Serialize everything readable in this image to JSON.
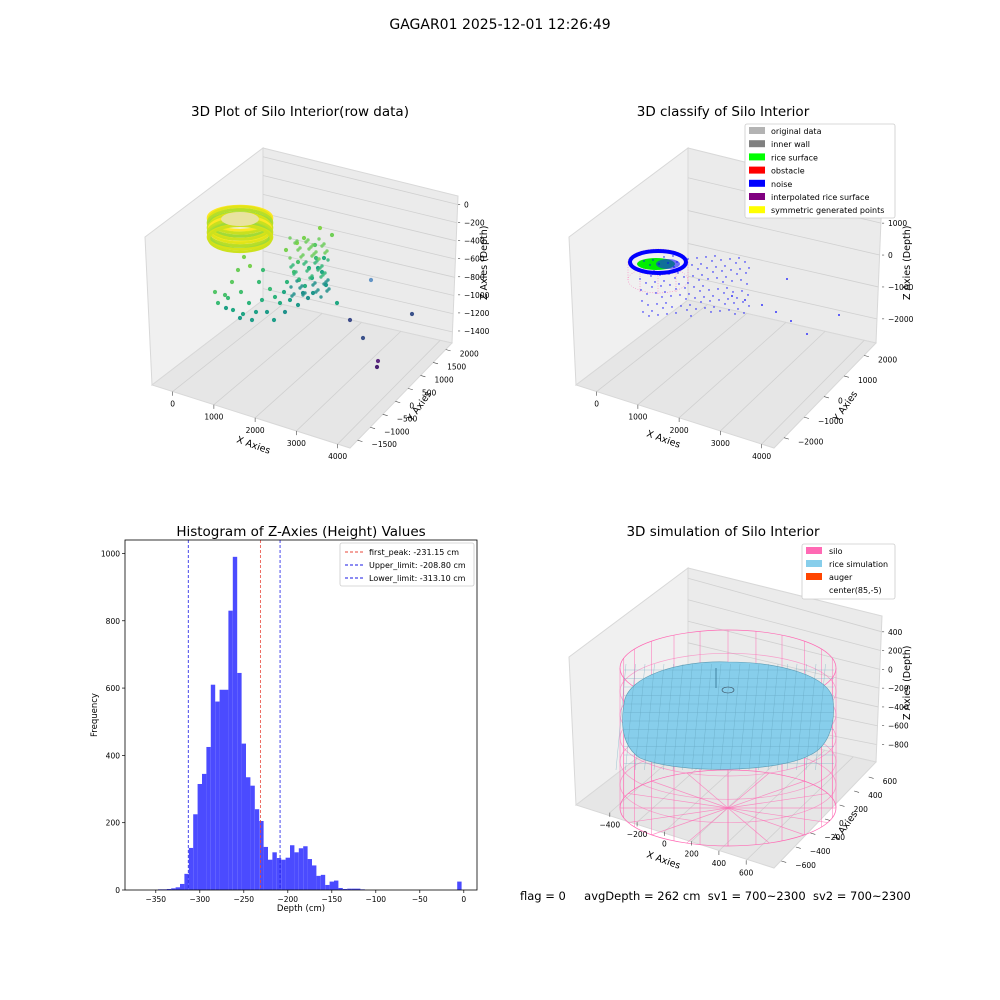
{
  "figure": {
    "title": "GAGAR01 2025-12-01 12:26:49",
    "status": {
      "flag": "flag = 0",
      "avg_depth": "avgDepth = 262 cm",
      "sv1": "sv1 = 700~2300",
      "sv2": "sv2 = 700~2300"
    }
  },
  "chart_data": [
    {
      "type": "scatter3d",
      "title": "3D Plot of Silo Interior(row data)",
      "xlabel": "X Axies",
      "ylabel": "Y Axies",
      "zlabel": "Z Axies (Depth)",
      "x_ticks": [
        0,
        1000,
        2000,
        3000,
        4000
      ],
      "y_ticks": [
        -1500,
        -1000,
        -500,
        0,
        500,
        1000,
        1500,
        2000
      ],
      "z_ticks": [
        0,
        -200,
        -400,
        -600,
        -800,
        -1000,
        -1200,
        -1400
      ],
      "colormap": "viridis",
      "clusters": [
        {
          "description": "dense ring",
          "approx_x": 600,
          "approx_y": 0,
          "approx_z": -200,
          "color": "#d4e620"
        },
        {
          "description": "scattered interior points",
          "approx_x": [
            500,
            2500
          ],
          "approx_z": [
            -300,
            -1100
          ],
          "color": "#35b779"
        },
        {
          "description": "far outliers",
          "approx_x": [
            3200,
            4200
          ],
          "approx_z": [
            -1300,
            -1500
          ],
          "color": "#472d7b"
        }
      ]
    },
    {
      "type": "scatter3d",
      "title": "3D classify of Silo Interior",
      "xlabel": "X Axies",
      "ylabel": "Y Axies",
      "zlabel": "Z Axies (Depth)",
      "x_ticks": [
        0,
        1000,
        2000,
        3000,
        4000
      ],
      "y_ticks": [
        -2000,
        -1000,
        0,
        1000,
        2000
      ],
      "z_ticks": [
        1000,
        0,
        -1000,
        -2000
      ],
      "legend": [
        {
          "label": "original data",
          "color": "#b3b3b3"
        },
        {
          "label": "inner wall",
          "color": "#808080"
        },
        {
          "label": "rice surface",
          "color": "#00ff00"
        },
        {
          "label": "obstacle",
          "color": "#ff0000"
        },
        {
          "label": "noise",
          "color": "#0000ff"
        },
        {
          "label": "interpolated rice surface",
          "color": "#800080"
        },
        {
          "label": "symmetric generated points",
          "color": "#ffff00"
        }
      ],
      "legend_position": "top-right"
    },
    {
      "type": "bar",
      "title": "Histogram of Z-Axies (Height) Values",
      "xlabel": "Depth (cm)",
      "ylabel": "Frequency",
      "xlim": [
        -385,
        15
      ],
      "ylim": [
        0,
        1040
      ],
      "x_ticks": [
        -350,
        -300,
        -250,
        -200,
        -150,
        -100,
        -50,
        0
      ],
      "y_ticks": [
        0,
        200,
        400,
        600,
        800,
        1000
      ],
      "bin_width": 5,
      "bins": [
        {
          "x": -345,
          "y": 2
        },
        {
          "x": -340,
          "y": 2
        },
        {
          "x": -335,
          "y": 3
        },
        {
          "x": -330,
          "y": 5
        },
        {
          "x": -325,
          "y": 8
        },
        {
          "x": -320,
          "y": 18
        },
        {
          "x": -315,
          "y": 48
        },
        {
          "x": -310,
          "y": 125
        },
        {
          "x": -305,
          "y": 225
        },
        {
          "x": -300,
          "y": 315
        },
        {
          "x": -295,
          "y": 345
        },
        {
          "x": -290,
          "y": 425
        },
        {
          "x": -285,
          "y": 610
        },
        {
          "x": -280,
          "y": 560
        },
        {
          "x": -275,
          "y": 595
        },
        {
          "x": -270,
          "y": 595
        },
        {
          "x": -265,
          "y": 830
        },
        {
          "x": -260,
          "y": 990
        },
        {
          "x": -255,
          "y": 645
        },
        {
          "x": -250,
          "y": 435
        },
        {
          "x": -245,
          "y": 335
        },
        {
          "x": -240,
          "y": 310
        },
        {
          "x": -235,
          "y": 240
        },
        {
          "x": -230,
          "y": 205
        },
        {
          "x": -225,
          "y": 128
        },
        {
          "x": -220,
          "y": 90
        },
        {
          "x": -215,
          "y": 112
        },
        {
          "x": -210,
          "y": 95
        },
        {
          "x": -205,
          "y": 90
        },
        {
          "x": -200,
          "y": 96
        },
        {
          "x": -195,
          "y": 133
        },
        {
          "x": -190,
          "y": 112
        },
        {
          "x": -185,
          "y": 124
        },
        {
          "x": -180,
          "y": 130
        },
        {
          "x": -175,
          "y": 92
        },
        {
          "x": -170,
          "y": 73
        },
        {
          "x": -165,
          "y": 42
        },
        {
          "x": -160,
          "y": 45
        },
        {
          "x": -155,
          "y": 15
        },
        {
          "x": -150,
          "y": 25
        },
        {
          "x": -145,
          "y": 28
        },
        {
          "x": -140,
          "y": 6
        },
        {
          "x": -135,
          "y": 3
        },
        {
          "x": -130,
          "y": 4
        },
        {
          "x": -125,
          "y": 4
        },
        {
          "x": -120,
          "y": 4
        },
        {
          "x": -115,
          "y": 2
        },
        {
          "x": -110,
          "y": 0
        },
        {
          "x": -5,
          "y": 25
        }
      ],
      "bar_color": "#4b4bff",
      "lines": [
        {
          "label": "first_peak: -231.15 cm",
          "x": -231.15,
          "color": "#e8473a"
        },
        {
          "label": "Upper_limit: -208.80 cm",
          "x": -208.8,
          "color": "#1a1ae6"
        },
        {
          "label": "Lower_limit: -313.10 cm",
          "x": -313.1,
          "color": "#1a1ae6"
        }
      ],
      "legend_position": "top-right"
    },
    {
      "type": "surface3d",
      "title": "3D simulation of Silo Interior",
      "xlabel": "X Axies",
      "ylabel": "Y Axies",
      "zlabel": "Z Axies (Depth)",
      "x_ticks": [
        -400,
        -200,
        0,
        200,
        400,
        600
      ],
      "y_ticks": [
        -600,
        -400,
        -200,
        0,
        200,
        400,
        600
      ],
      "z_ticks": [
        400,
        200,
        0,
        -200,
        -400,
        -600,
        -800
      ],
      "legend": [
        {
          "label": "silo",
          "color": "#ff69b4"
        },
        {
          "label": "rice simulation",
          "color": "#87ceeb"
        },
        {
          "label": "auger",
          "color": "#ff4500"
        },
        {
          "label": "center(85,-5)",
          "color": ""
        }
      ],
      "legend_position": "top-right"
    }
  ]
}
